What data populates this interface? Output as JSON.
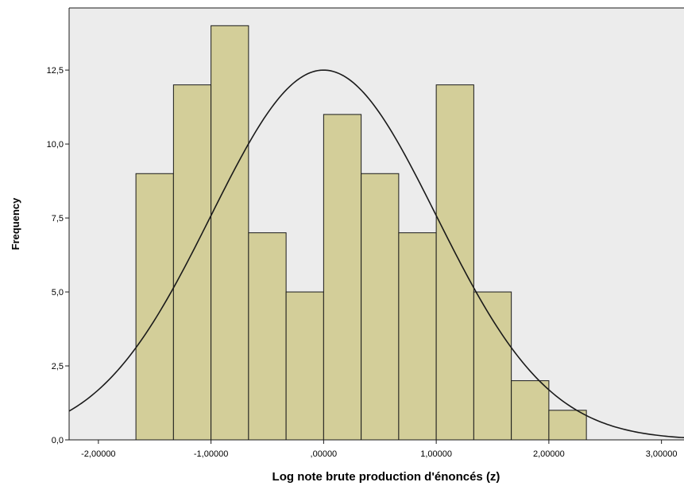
{
  "chart_data": {
    "type": "bar",
    "subtype": "histogram-with-normal-curve",
    "xlabel": "Log note brute production d'énoncés (z)",
    "ylabel": "Frequency",
    "bins": [
      {
        "start": -1.6667,
        "end": -1.3333,
        "count": 9
      },
      {
        "start": -1.3333,
        "end": -1.0,
        "count": 12
      },
      {
        "start": -1.0,
        "end": -0.6667,
        "count": 14
      },
      {
        "start": -0.6667,
        "end": -0.3333,
        "count": 7
      },
      {
        "start": -0.3333,
        "end": 0.0,
        "count": 5
      },
      {
        "start": 0.0,
        "end": 0.3333,
        "count": 11
      },
      {
        "start": 0.3333,
        "end": 0.6667,
        "count": 9
      },
      {
        "start": 0.6667,
        "end": 1.0,
        "count": 7
      },
      {
        "start": 1.0,
        "end": 1.3333,
        "count": 12
      },
      {
        "start": 1.3333,
        "end": 1.6667,
        "count": 5
      },
      {
        "start": 1.6667,
        "end": 2.0,
        "count": 2
      },
      {
        "start": 2.0,
        "end": 2.3333,
        "count": 1
      }
    ],
    "normal_curve": {
      "mean": 0.0,
      "sd": 1.0,
      "peak": 12.5
    },
    "xlim": [
      -2.26,
      3.2
    ],
    "ylim": [
      0,
      14.6
    ],
    "xticks": [
      {
        "value": -2,
        "label": "-2,00000"
      },
      {
        "value": -1,
        "label": "-1,00000"
      },
      {
        "value": 0,
        "label": ",00000"
      },
      {
        "value": 1,
        "label": "1,00000"
      },
      {
        "value": 2,
        "label": "2,00000"
      },
      {
        "value": 3,
        "label": "3,00000"
      }
    ],
    "yticks": [
      {
        "value": 0,
        "label": "0,0"
      },
      {
        "value": 2.5,
        "label": "2,5"
      },
      {
        "value": 5,
        "label": "5,0"
      },
      {
        "value": 7.5,
        "label": "7,5"
      },
      {
        "value": 10,
        "label": "10,0"
      },
      {
        "value": 12.5,
        "label": "12,5"
      }
    ],
    "colors": {
      "plot_background": "#ececec",
      "bar_fill": "#d3ce99",
      "bar_stroke": "#1a1a1a",
      "curve": "#1a1a1a"
    },
    "grid": false,
    "legend": "none"
  }
}
